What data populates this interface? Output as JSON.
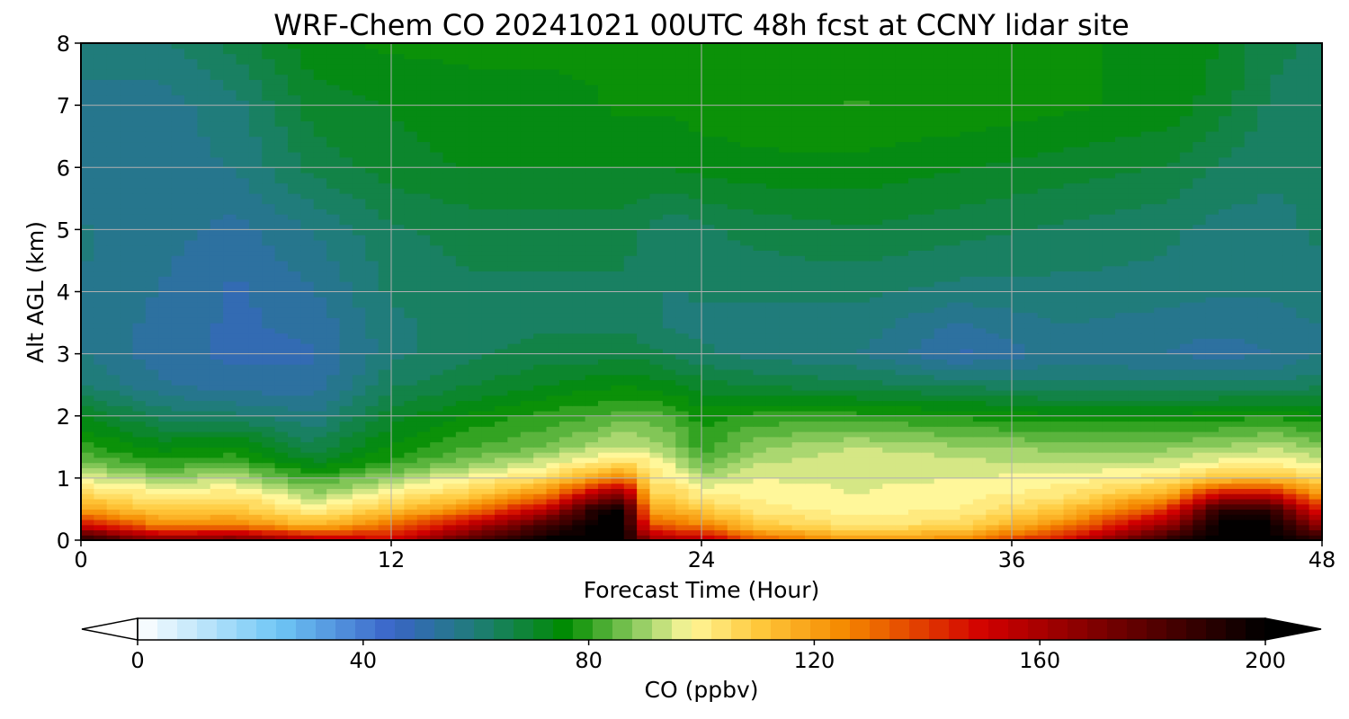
{
  "chart_data": {
    "type": "heatmap",
    "title": "WRF-Chem CO  20241021 00UTC 48h fcst at CCNY lidar site",
    "xlabel": "Forecast Time (Hour)",
    "ylabel": "Alt AGL (km)",
    "xlim": [
      0,
      48
    ],
    "ylim": [
      0,
      8
    ],
    "x_ticks": [
      "0",
      "12",
      "24",
      "36",
      "48"
    ],
    "y_ticks": [
      "0",
      "1",
      "2",
      "3",
      "4",
      "5",
      "6",
      "7",
      "8"
    ],
    "grid": true,
    "colorbar": {
      "label": "CO  (ppbv)",
      "range": [
        0,
        200
      ],
      "extend": "both",
      "ticks": [
        "0",
        "40",
        "80",
        "120",
        "160",
        "200"
      ],
      "colors": [
        [
          0,
          "#ffffff"
        ],
        [
          25,
          "#6ec6f5"
        ],
        [
          45,
          "#3a64c8"
        ],
        [
          60,
          "#1f7d78"
        ],
        [
          76,
          "#008c00"
        ],
        [
          90,
          "#9ed26a"
        ],
        [
          98,
          "#fff79a"
        ],
        [
          110,
          "#ffc93c"
        ],
        [
          125,
          "#f58a00"
        ],
        [
          150,
          "#d20000"
        ],
        [
          175,
          "#6a0000"
        ],
        [
          200,
          "#000000"
        ]
      ]
    },
    "x_hours": [
      0,
      3,
      6,
      9,
      12,
      15,
      18,
      20,
      21,
      22,
      23,
      24,
      26,
      30,
      34,
      38,
      42,
      44,
      46,
      48
    ],
    "alt_km": [
      0,
      0.25,
      0.5,
      0.75,
      1,
      1.25,
      1.5,
      2,
      2.5,
      3,
      3.5,
      4,
      5,
      6,
      7,
      8
    ],
    "co_ppbv": [
      [
        195,
        170,
        175,
        160,
        150,
        182,
        200,
        200,
        200,
        165,
        160,
        160,
        135,
        120,
        125,
        150,
        190,
        200,
        200,
        190
      ],
      [
        150,
        125,
        125,
        112,
        130,
        155,
        185,
        200,
        200,
        135,
        130,
        125,
        110,
        102,
        105,
        125,
        165,
        200,
        200,
        165
      ],
      [
        120,
        108,
        110,
        100,
        110,
        125,
        155,
        195,
        200,
        118,
        115,
        110,
        102,
        98,
        100,
        110,
        140,
        190,
        190,
        140
      ],
      [
        106,
        100,
        102,
        90,
        100,
        108,
        125,
        160,
        170,
        108,
        106,
        100,
        98,
        96,
        98,
        102,
        115,
        150,
        150,
        120
      ],
      [
        96,
        90,
        92,
        80,
        90,
        98,
        105,
        120,
        130,
        102,
        100,
        92,
        96,
        96,
        96,
        98,
        102,
        110,
        112,
        104
      ],
      [
        86,
        80,
        82,
        72,
        80,
        88,
        95,
        102,
        105,
        100,
        94,
        84,
        92,
        96,
        94,
        92,
        94,
        98,
        100,
        94
      ],
      [
        80,
        74,
        76,
        66,
        76,
        82,
        86,
        92,
        94,
        92,
        88,
        80,
        88,
        93,
        90,
        88,
        88,
        90,
        92,
        88
      ],
      [
        72,
        64,
        62,
        58,
        70,
        76,
        80,
        82,
        84,
        84,
        82,
        77,
        80,
        80,
        78,
        76,
        76,
        77,
        78,
        76
      ],
      [
        62,
        55,
        52,
        52,
        64,
        68,
        72,
        74,
        75,
        74,
        72,
        70,
        68,
        66,
        64,
        62,
        62,
        62,
        62,
        64
      ],
      [
        58,
        52,
        50,
        50,
        60,
        64,
        66,
        66,
        67,
        66,
        64,
        62,
        60,
        58,
        50,
        56,
        54,
        53,
        54,
        58
      ],
      [
        58,
        53,
        50,
        52,
        60,
        64,
        64,
        64,
        64,
        62,
        60,
        60,
        60,
        60,
        54,
        58,
        56,
        55,
        56,
        58
      ],
      [
        58,
        54,
        50,
        54,
        62,
        64,
        64,
        64,
        64,
        62,
        61,
        62,
        62,
        62,
        60,
        60,
        60,
        58,
        58,
        60
      ],
      [
        58,
        56,
        53,
        58,
        64,
        66,
        66,
        66,
        66,
        64,
        62,
        64,
        66,
        68,
        66,
        64,
        62,
        60,
        60,
        62
      ],
      [
        56,
        56,
        58,
        66,
        70,
        72,
        72,
        72,
        72,
        72,
        72,
        73,
        74,
        74,
        72,
        70,
        68,
        64,
        62,
        62
      ],
      [
        56,
        56,
        60,
        70,
        72,
        74,
        74,
        75,
        76,
        76,
        76,
        77,
        78,
        79,
        78,
        76,
        74,
        70,
        64,
        62
      ],
      [
        60,
        60,
        66,
        74,
        76,
        76,
        76,
        76,
        76,
        76,
        76,
        76,
        76,
        76,
        76,
        76,
        74,
        72,
        66,
        64
      ]
    ]
  }
}
